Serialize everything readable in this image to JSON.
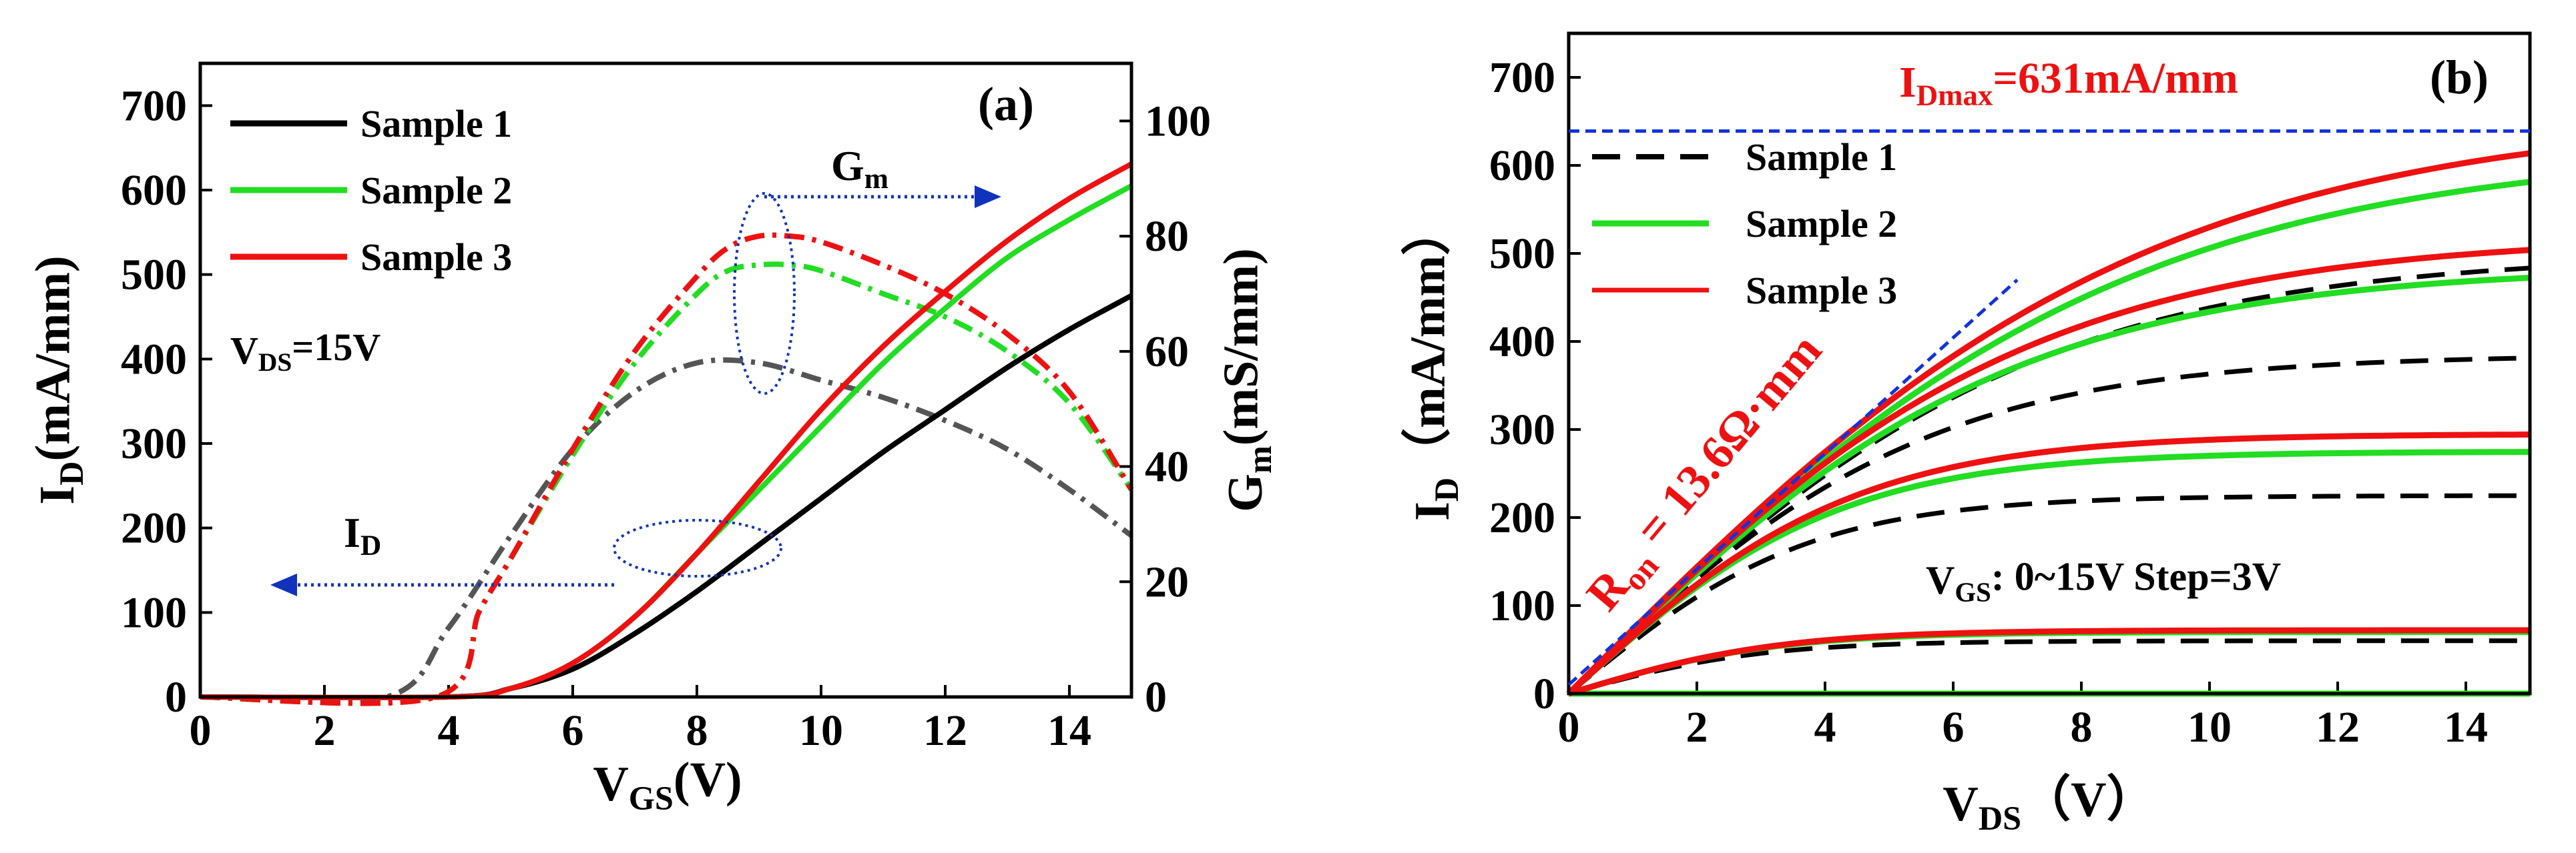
{
  "chart_data": [
    {
      "id": "a",
      "type": "line",
      "panel_label": "(a)",
      "xlabel": "V_GS(V)",
      "ylabel_left": "I_D(mA/mm)",
      "ylabel_right": "G_m(mS/mm)",
      "xlim": [
        0,
        15
      ],
      "ylim_left": [
        0,
        750
      ],
      "ylim_right": [
        0,
        110
      ],
      "xticks": [
        0,
        2,
        4,
        6,
        8,
        10,
        12,
        14
      ],
      "yticks_left": [
        0,
        100,
        200,
        300,
        400,
        500,
        600,
        700
      ],
      "yticks_right": [
        0,
        20,
        40,
        60,
        80,
        100
      ],
      "condition": "V_DS=15V",
      "annotations": {
        "gm": "G_m",
        "id": "I_D"
      },
      "legend": [
        {
          "name": "Sample 1",
          "color": "#000000"
        },
        {
          "name": "Sample 2",
          "color": "#22dd22"
        },
        {
          "name": "Sample 3",
          "color": "#ee1111"
        }
      ],
      "id_series": [
        {
          "name": "Sample 1",
          "color": "#000000",
          "x": [
            0,
            4,
            5,
            6,
            7,
            8,
            9,
            10,
            11,
            12,
            13,
            14,
            15
          ],
          "y": [
            0,
            0,
            10,
            33,
            75,
            125,
            180,
            235,
            290,
            340,
            390,
            435,
            475
          ]
        },
        {
          "name": "Sample 2",
          "color": "#22dd22",
          "x": [
            0,
            4,
            5,
            6,
            7,
            8,
            9,
            10,
            11,
            12,
            13,
            14,
            15
          ],
          "y": [
            0,
            0,
            10,
            40,
            95,
            170,
            245,
            320,
            395,
            460,
            520,
            565,
            605
          ]
        },
        {
          "name": "Sample 3",
          "color": "#ee1111",
          "x": [
            0,
            4,
            5,
            6,
            7,
            8,
            9,
            10,
            11,
            12,
            13,
            14,
            15
          ],
          "y": [
            0,
            0,
            10,
            40,
            95,
            170,
            255,
            340,
            415,
            480,
            540,
            590,
            631
          ]
        }
      ],
      "gm_series": [
        {
          "name": "Sample 1",
          "color": "#555555",
          "x": [
            0,
            3,
            4,
            5,
            6,
            7,
            8,
            9,
            10,
            11,
            12,
            13,
            14,
            15
          ],
          "y": [
            0,
            0,
            12,
            28,
            43,
            53,
            58,
            58,
            55,
            52,
            48,
            43,
            36,
            28
          ]
        },
        {
          "name": "Sample 2",
          "color": "#22dd22",
          "x": [
            0,
            3.8,
            4.5,
            5,
            6,
            7,
            8,
            8.5,
            9,
            9.5,
            10,
            11,
            12,
            13,
            14,
            15
          ],
          "y": [
            0,
            0,
            15,
            24,
            42,
            58,
            70,
            74,
            75,
            75,
            74,
            70,
            66,
            60,
            51,
            36
          ]
        },
        {
          "name": "Sample 3",
          "color": "#ee1111",
          "x": [
            0,
            3.8,
            4.5,
            5,
            6,
            7,
            8,
            8.5,
            9,
            9.5,
            10,
            11,
            12,
            13,
            14,
            15
          ],
          "y": [
            0,
            0,
            15,
            24,
            43,
            60,
            73,
            78,
            80,
            80,
            79,
            75,
            70,
            63,
            53,
            36
          ]
        }
      ]
    },
    {
      "id": "b",
      "type": "line",
      "panel_label": "(b)",
      "xlabel": "V_DS（V）",
      "ylabel": "I_D（mA/mm）",
      "xlim": [
        0,
        15
      ],
      "ylim": [
        0,
        750
      ],
      "xticks": [
        0,
        2,
        4,
        6,
        8,
        10,
        12,
        14
      ],
      "yticks": [
        0,
        100,
        200,
        300,
        400,
        500,
        600,
        700
      ],
      "idmax_label": "I_Dmax=631mA/mm",
      "ron_label": "R_on = 13.6Ω·mm",
      "vgs_label": "V_GS:  0~15V Step=3V",
      "legend": [
        {
          "name": "Sample 1",
          "color": "#000000",
          "style": "dashed"
        },
        {
          "name": "Sample 2",
          "color": "#22dd22",
          "style": "solid"
        },
        {
          "name": "Sample 3",
          "color": "#ee1111",
          "style": "solid"
        }
      ],
      "series": [
        {
          "sample": "Sample 1",
          "vgs": 0,
          "color": "#000000",
          "dashed": true,
          "isat": 0,
          "k": 20
        },
        {
          "sample": "Sample 1",
          "vgs": 3,
          "color": "#000000",
          "dashed": true,
          "isat": 60,
          "k": 20
        },
        {
          "sample": "Sample 1",
          "vgs": 6,
          "color": "#000000",
          "dashed": true,
          "isat": 225,
          "k": 60
        },
        {
          "sample": "Sample 1",
          "vgs": 9,
          "color": "#000000",
          "dashed": true,
          "isat": 385,
          "k": 68
        },
        {
          "sample": "Sample 1",
          "vgs": 12,
          "color": "#000000",
          "dashed": true,
          "isat": 500,
          "k": 68
        },
        {
          "sample": "Sample 2",
          "vgs": 0,
          "color": "#22dd22",
          "dashed": false,
          "isat": 0,
          "k": 22
        },
        {
          "sample": "Sample 2",
          "vgs": 3,
          "color": "#22dd22",
          "dashed": false,
          "isat": 70,
          "k": 22
        },
        {
          "sample": "Sample 2",
          "vgs": 6,
          "color": "#22dd22",
          "dashed": false,
          "isat": 275,
          "k": 65
        },
        {
          "sample": "Sample 2",
          "vgs": 9,
          "color": "#22dd22",
          "dashed": false,
          "isat": 485,
          "k": 70
        },
        {
          "sample": "Sample 2",
          "vgs": 12,
          "color": "#22dd22",
          "dashed": false,
          "isat": 620,
          "k": 71
        },
        {
          "sample": "Sample 3",
          "vgs": 3,
          "color": "#ee1111",
          "dashed": false,
          "isat": 72,
          "k": 22
        },
        {
          "sample": "Sample 3",
          "vgs": 6,
          "color": "#ee1111",
          "dashed": false,
          "isat": 295,
          "k": 66
        },
        {
          "sample": "Sample 3",
          "vgs": 9,
          "color": "#ee1111",
          "dashed": false,
          "isat": 520,
          "k": 72
        },
        {
          "sample": "Sample 3",
          "vgs": 12,
          "color": "#ee1111",
          "dashed": false,
          "isat": 660,
          "k": 73
        }
      ]
    }
  ]
}
